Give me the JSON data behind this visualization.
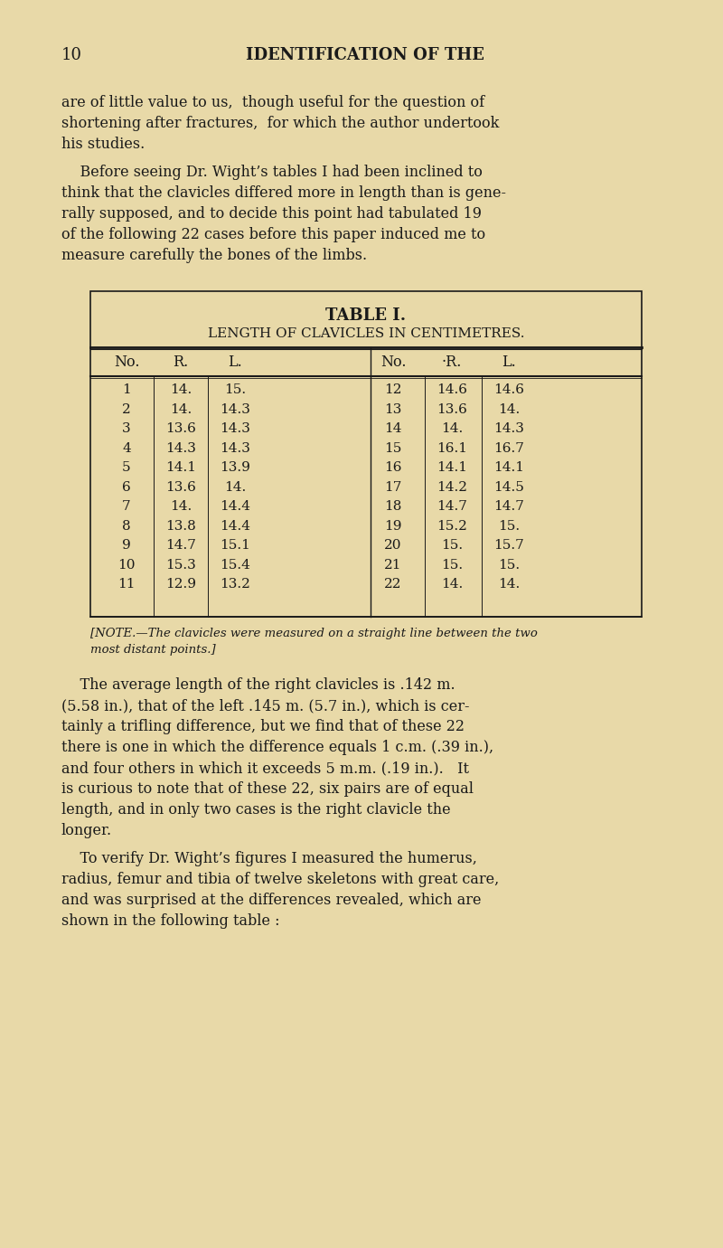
{
  "background_color": "#e8d9a8",
  "page_number": "10",
  "page_header": "IDENTIFICATION OF THE",
  "para1": "are of little value to us, though useful for the question of shortening after fractures, for which the author undertook his studies.",
  "para2": "Before seeing Dr. Wight’s tables I had been inclined to think that the clavicles differed more in length than is gene-rally supposed, and to decide this point had tabulated 19 of the following 22 cases before this paper induced me to measure carefully the bones of the limbs.",
  "table_title": "TABLE I.",
  "table_subtitle": "LENGTH OF CLAVICLES IN CENTIMETRES.",
  "col_headers": [
    "No.",
    "R.",
    "L.",
    "No.",
    "·R.",
    "L."
  ],
  "left_data": [
    [
      1,
      "14.",
      "15."
    ],
    [
      2,
      "14.",
      "14.3"
    ],
    [
      3,
      "13.6",
      "14.3"
    ],
    [
      4,
      "14.3",
      "14.3"
    ],
    [
      5,
      "14.1",
      "13.9"
    ],
    [
      6,
      "13.6",
      "14."
    ],
    [
      7,
      "14.",
      "14.4"
    ],
    [
      8,
      "13.8",
      "14.4"
    ],
    [
      9,
      "14.7",
      "15.1"
    ],
    [
      10,
      "15.3",
      "15.4"
    ],
    [
      11,
      "12.9",
      "13.2"
    ]
  ],
  "right_data": [
    [
      12,
      "14.6",
      "14.6"
    ],
    [
      13,
      "13.6",
      "14."
    ],
    [
      14,
      "14.",
      "14.3"
    ],
    [
      15,
      "16.1",
      "16.7"
    ],
    [
      16,
      "14.1",
      "14.1"
    ],
    [
      17,
      "14.2",
      "14.5"
    ],
    [
      18,
      "14.7",
      "14.7"
    ],
    [
      19,
      "15.2",
      "15."
    ],
    [
      20,
      "15.",
      "15.7"
    ],
    [
      21,
      "15.",
      "15."
    ],
    [
      22,
      "14.",
      "14."
    ]
  ],
  "note": "[NOTE.—The clavicles were measured on a straight line between the two\nmost distant points.]",
  "para3": "The average length of the right clavicles is .142 m. (5.58 in.), that of the left .145 m. (5.7 in.), which is cer-tainly a trifling difference, but we find that of these 22 there is one in which the difference equals 1 c.m. (.39 in.), and four others in which it exceeds 5 m.m. (.19 in.).  It is curious to note that of these 22, six pairs are of equal length, and in only two cases is the right clavicle the longer.",
  "para4": "To verify Dr. Wight’s figures I measured the humerus, radius, femur and tibia of twelve skeletons with great care, and was surprised at the differences revealed, which are shown in the following table :"
}
